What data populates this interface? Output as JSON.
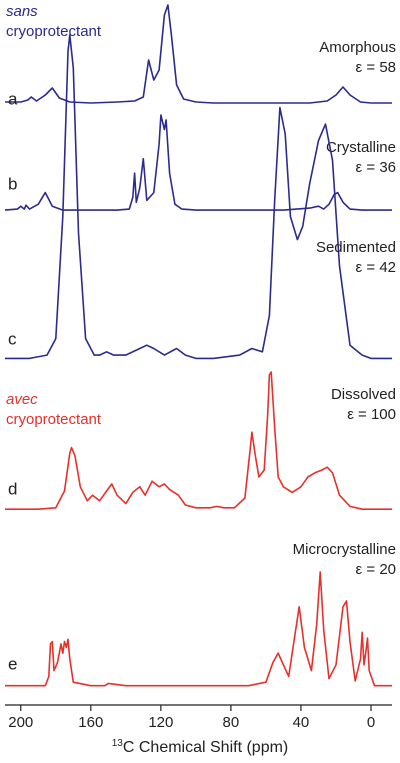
{
  "chart_data": {
    "type": "line",
    "groups": [
      {
        "prefix": "sans",
        "text": "cryoprotectant",
        "color": "#2b2b8f"
      },
      {
        "prefix": "avec",
        "text": "cryoprotectant",
        "color": "#e8302a"
      }
    ],
    "x_label": {
      "superscript": "13",
      "text": "C Chemical Shift (ppm)"
    },
    "xlim": [
      209,
      -12
    ],
    "xticks": [
      200,
      160,
      120,
      80,
      40,
      0
    ],
    "series": [
      {
        "name": "Amorphous",
        "letter": "a",
        "annotation": "ε = 58",
        "color": "#2b2b8f",
        "x": [
          209,
          200,
          196,
          194,
          191,
          186,
          182,
          178,
          172,
          160,
          145,
          135,
          130,
          127,
          124,
          121,
          118,
          116,
          114,
          111,
          107,
          100,
          90,
          70,
          50,
          35,
          25,
          20,
          16,
          12,
          6,
          0,
          -12
        ],
        "values": [
          3,
          3,
          5,
          8,
          4,
          10,
          17,
          7,
          3,
          2,
          3,
          4,
          8,
          45,
          25,
          35,
          90,
          100,
          70,
          20,
          6,
          3,
          2,
          2,
          2,
          2,
          4,
          10,
          18,
          10,
          3,
          2,
          2
        ]
      },
      {
        "name": "Crystalline",
        "letter": "b",
        "annotation": "ε = 36",
        "color": "#2b2b8f",
        "x": [
          209,
          202,
          200,
          198,
          197,
          195,
          190,
          186,
          182,
          176,
          160,
          145,
          138,
          136,
          135,
          134,
          132,
          130,
          128,
          124,
          121,
          120,
          118,
          117,
          115,
          112,
          108,
          100,
          80,
          50,
          35,
          30,
          27,
          24,
          21,
          19,
          16,
          12,
          5,
          -12
        ],
        "values": [
          2,
          3,
          6,
          3,
          7,
          3,
          8,
          20,
          6,
          2,
          2,
          2,
          3,
          15,
          40,
          10,
          25,
          55,
          12,
          20,
          70,
          100,
          85,
          95,
          40,
          8,
          3,
          2,
          2,
          2,
          4,
          6,
          3,
          8,
          18,
          20,
          10,
          3,
          2,
          2
        ]
      },
      {
        "name": "Sedimented",
        "letter": "c",
        "annotation": "ε = 42",
        "color": "#2b2b8f",
        "x": [
          209,
          195,
          185,
          180,
          176,
          173,
          172,
          170,
          167,
          163,
          158,
          155,
          151,
          147,
          140,
          132,
          128,
          124,
          118,
          111,
          106,
          100,
          90,
          75,
          68,
          62,
          58,
          55,
          52,
          49,
          46,
          42,
          39,
          35,
          30,
          26,
          22,
          18,
          12,
          5,
          0,
          -12
        ],
        "values": [
          2,
          2,
          3,
          8,
          45,
          95,
          100,
          90,
          40,
          8,
          3,
          3,
          4,
          3,
          3,
          5,
          6,
          5,
          3,
          5,
          3,
          2,
          2,
          3,
          5,
          4,
          15,
          50,
          78,
          70,
          45,
          38,
          42,
          55,
          68,
          73,
          62,
          30,
          6,
          3,
          2,
          2
        ]
      },
      {
        "name": "Dissolved",
        "letter": "d",
        "annotation": "ε = 100",
        "color": "#e8302a",
        "x": [
          209,
          190,
          180,
          175,
          172,
          171,
          169,
          166,
          162,
          159,
          155,
          151,
          148,
          145,
          140,
          136,
          132,
          129,
          125,
          121,
          118,
          115,
          110,
          106,
          100,
          92,
          88,
          84,
          78,
          72,
          69,
          68,
          66,
          64,
          61,
          59,
          58,
          57,
          55,
          53,
          50,
          45,
          40,
          36,
          32,
          28,
          25,
          22,
          18,
          12,
          5,
          -12
        ],
        "values": [
          2,
          2,
          3,
          15,
          42,
          46,
          40,
          18,
          8,
          12,
          8,
          15,
          20,
          12,
          6,
          14,
          18,
          12,
          22,
          18,
          20,
          16,
          12,
          5,
          3,
          3,
          4,
          3,
          3,
          10,
          45,
          57,
          40,
          25,
          30,
          70,
          98,
          100,
          60,
          25,
          18,
          14,
          18,
          25,
          28,
          30,
          32,
          28,
          12,
          4,
          2,
          2
        ]
      },
      {
        "name": "Microcrystalline",
        "letter": "e",
        "annotation": "ε = 20",
        "color": "#e8302a",
        "x": [
          209,
          190,
          186,
          184,
          183,
          182,
          181,
          179,
          178,
          177,
          176,
          175,
          174,
          173,
          172,
          170,
          160,
          152,
          150,
          140,
          100,
          70,
          60,
          56,
          53,
          50,
          47,
          44,
          41,
          38,
          34,
          31,
          29,
          27,
          24,
          20,
          16,
          14,
          12,
          9,
          6,
          5,
          4,
          3,
          2,
          1,
          -2,
          -12
        ],
        "values": [
          2,
          2,
          2,
          10,
          38,
          40,
          15,
          22,
          30,
          38,
          30,
          40,
          35,
          42,
          25,
          5,
          2,
          2,
          4,
          2,
          2,
          2,
          5,
          22,
          30,
          20,
          10,
          40,
          70,
          35,
          15,
          55,
          100,
          50,
          8,
          20,
          70,
          75,
          40,
          6,
          25,
          48,
          20,
          30,
          43,
          15,
          2,
          2
        ]
      }
    ]
  }
}
